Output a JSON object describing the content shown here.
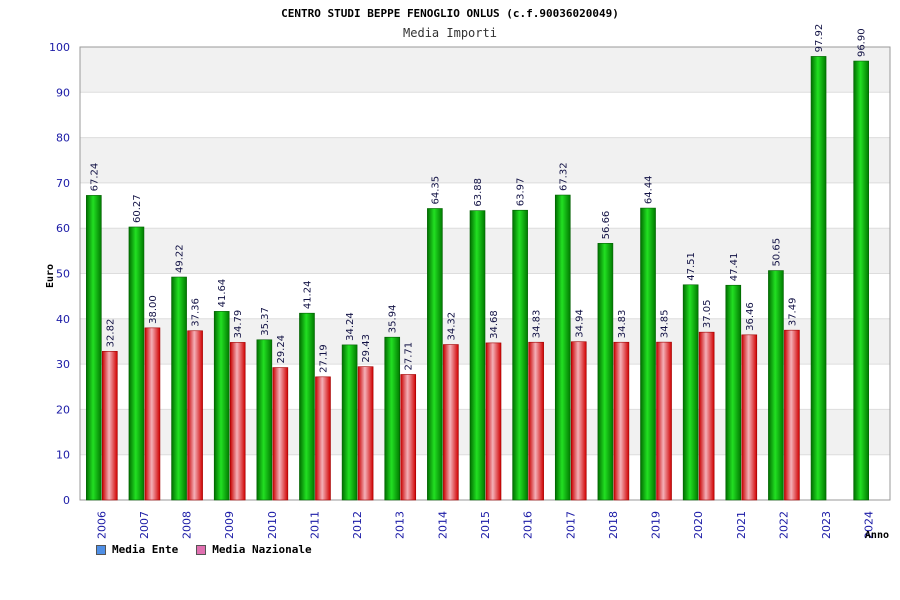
{
  "chart_data": {
    "type": "bar",
    "title": "CENTRO STUDI BEPPE FENOGLIO ONLUS (c.f.90036020049)",
    "subtitle": "Media Importi",
    "xlabel": "Anno",
    "ylabel": "Euro",
    "ylim": [
      0,
      100
    ],
    "yticks": [
      0,
      10,
      20,
      30,
      40,
      50,
      60,
      70,
      80,
      90,
      100
    ],
    "y_tick_labels": [
      "0",
      "10",
      "20",
      "30",
      "40",
      "50",
      "60",
      "70",
      "80",
      "90",
      "100"
    ],
    "grid": true,
    "categories": [
      "2006",
      "2007",
      "2008",
      "2009",
      "2010",
      "2011",
      "2012",
      "2013",
      "2014",
      "2015",
      "2016",
      "2017",
      "2018",
      "2019",
      "2020",
      "2021",
      "2022",
      "2023",
      "2024"
    ],
    "series": [
      {
        "name": "Media Ente",
        "color": "#00c000",
        "legend_color": "#4f8fe6",
        "values": [
          67.24,
          60.27,
          49.22,
          41.64,
          35.37,
          41.24,
          34.24,
          35.94,
          64.35,
          63.88,
          63.97,
          67.32,
          56.66,
          64.44,
          47.51,
          47.41,
          50.65,
          97.92,
          96.9
        ],
        "labels": [
          "67.24",
          "60.27",
          "49.22",
          "41.64",
          "35.37",
          "41.24",
          "34.24",
          "35.94",
          "64.35",
          "63.88",
          "63.97",
          "67.32",
          "56.66",
          "64.44",
          "47.51",
          "47.41",
          "50.65",
          "97.92",
          "96.90"
        ]
      },
      {
        "name": "Media Nazionale",
        "color": "#e02020",
        "legend_color": "#e070b0",
        "values": [
          32.82,
          38.0,
          37.36,
          34.79,
          29.24,
          27.19,
          29.43,
          27.71,
          34.32,
          34.68,
          34.83,
          34.94,
          34.83,
          34.85,
          37.05,
          36.46,
          37.49,
          null,
          null
        ],
        "labels": [
          "32.82",
          "38.00",
          "37.36",
          "34.79",
          "29.24",
          "27.19",
          "29.43",
          "27.71",
          "34.32",
          "34.68",
          "34.83",
          "34.94",
          "34.83",
          "34.85",
          "37.05",
          "36.46",
          "37.49",
          null,
          null
        ]
      }
    ],
    "legend_position": "bottom-left"
  }
}
